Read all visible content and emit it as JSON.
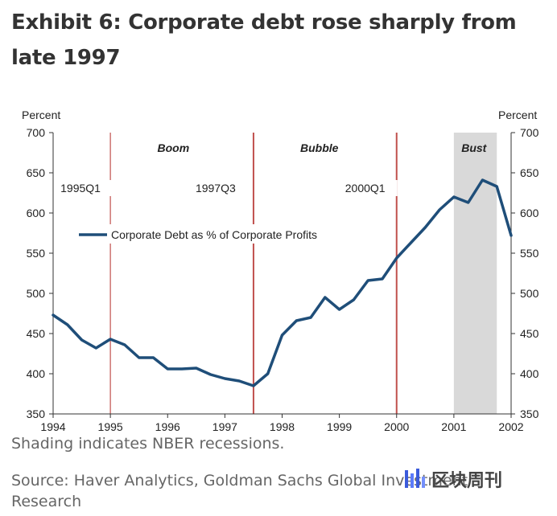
{
  "title": "Exhibit 6: Corporate debt rose sharply from late 1997",
  "footnote": "Shading indicates NBER recessions.",
  "source": "Source: Haver Analytics, Goldman Sachs Global Investment Research",
  "watermark": "区块周刊",
  "colors": {
    "line": "#1f4e79",
    "marker": "#c0504d",
    "shade": "#d9d9d9",
    "axis": "#333333"
  },
  "chart_data": {
    "type": "line",
    "ylabel_left": "Percent",
    "ylabel_right": "Percent",
    "ylim": [
      350,
      700
    ],
    "yticks": [
      350,
      400,
      450,
      500,
      550,
      600,
      650,
      700
    ],
    "xlim": [
      1994,
      2002
    ],
    "xticks": [
      "1994",
      "1995",
      "1996",
      "1997",
      "1998",
      "1999",
      "2000",
      "2001",
      "2002"
    ],
    "series": [
      {
        "name": "Corporate Debt as % of Corporate Profits",
        "x": [
          1994.0,
          1994.25,
          1994.5,
          1994.75,
          1995.0,
          1995.25,
          1995.5,
          1995.75,
          1996.0,
          1996.25,
          1996.5,
          1996.75,
          1997.0,
          1997.25,
          1997.5,
          1997.75,
          1998.0,
          1998.25,
          1998.5,
          1998.75,
          1999.0,
          1999.25,
          1999.5,
          1999.75,
          2000.0,
          2000.25,
          2000.5,
          2000.75,
          2001.0,
          2001.25,
          2001.5,
          2001.75,
          2002.0
        ],
        "values": [
          473,
          461,
          442,
          432,
          443,
          436,
          420,
          420,
          406,
          406,
          407,
          399,
          394,
          391,
          385,
          400,
          448,
          466,
          470,
          495,
          480,
          492,
          516,
          518,
          544,
          563,
          582,
          604,
          620,
          613,
          641,
          633,
          572
        ]
      }
    ],
    "recession": {
      "start": 2001.0,
      "end": 2001.75,
      "label": "Bust"
    },
    "markers": [
      {
        "x": 1995.0,
        "label": "1995Q1"
      },
      {
        "x": 1997.5,
        "label": "1997Q3"
      },
      {
        "x": 2000.0,
        "label": "2000Q1"
      }
    ],
    "regions": [
      {
        "label": "Boom",
        "center": 1996.1
      },
      {
        "label": "Bubble",
        "center": 1998.65
      },
      {
        "label": "Bust",
        "center": 2001.35
      }
    ],
    "legend": "upper-left"
  }
}
